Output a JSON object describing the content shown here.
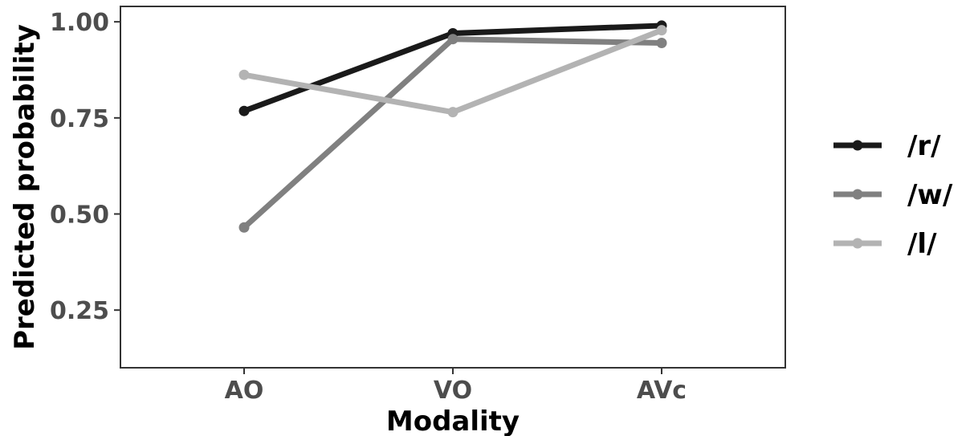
{
  "chart_data": {
    "type": "line",
    "title": "",
    "xlabel": "Modality",
    "ylabel": "Predicted probability",
    "categories": [
      "AO",
      "VO",
      "AVc"
    ],
    "ylim": [
      0.1,
      1.04
    ],
    "yticks": [
      0.25,
      0.5,
      0.75,
      1.0
    ],
    "ytick_labels": [
      "0.25",
      "0.50",
      "0.75",
      "1.00"
    ],
    "grid": false,
    "legend_position": "right",
    "series": [
      {
        "name": "/r/",
        "color": "#1a1a1a",
        "values": [
          0.768,
          0.97,
          0.99
        ]
      },
      {
        "name": "/w/",
        "color": "#808080",
        "values": [
          0.465,
          0.955,
          0.945
        ]
      },
      {
        "name": "/l/",
        "color": "#b3b3b3",
        "values": [
          0.862,
          0.765,
          0.978
        ]
      }
    ]
  }
}
